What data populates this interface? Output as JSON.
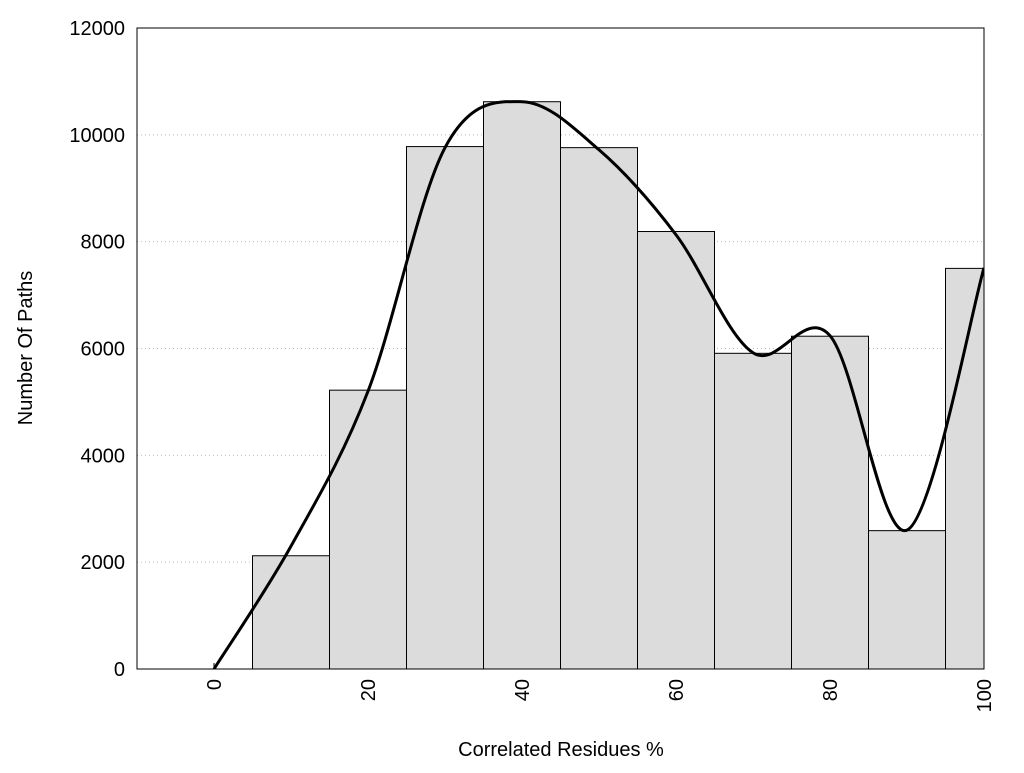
{
  "chart_data": {
    "type": "histogram",
    "xlabel": "Correlated Residues %",
    "ylabel": "Number Of Paths",
    "bins": [
      5,
      15,
      25,
      35,
      45,
      55,
      65,
      75,
      85,
      95,
      105
    ],
    "values": [
      2120,
      5220,
      9780,
      10620,
      9760,
      8190,
      5910,
      6230,
      2590,
      7500
    ],
    "color": "#dcdcdc",
    "curve": {
      "x": [
        0,
        10,
        20,
        30,
        40,
        50,
        60,
        70,
        80,
        90,
        100
      ],
      "values": [
        0,
        2300,
        5200,
        9760,
        10620,
        9720,
        8130,
        5920,
        6240,
        2600,
        7510
      ],
      "color": "#000000"
    },
    "xlim": [
      -10,
      100
    ],
    "ylim": [
      0,
      12000
    ],
    "xticks": [
      0,
      20,
      40,
      60,
      80,
      100
    ],
    "yticks": [
      0,
      2000,
      4000,
      6000,
      8000,
      10000,
      12000
    ],
    "grid": true
  }
}
